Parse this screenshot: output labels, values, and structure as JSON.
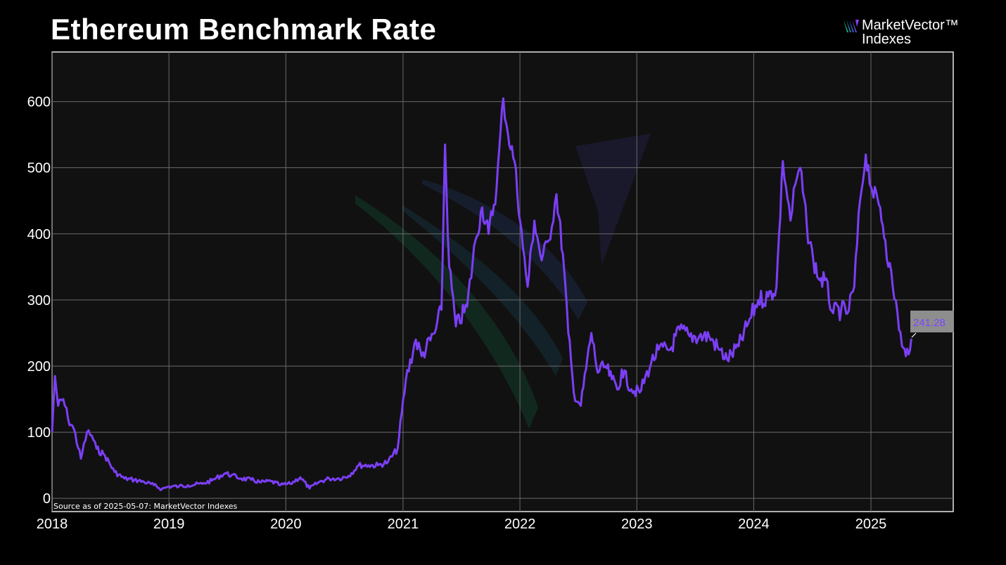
{
  "title": "Ethereum Benchmark Rate",
  "logo": {
    "line1": "MarketVector™",
    "line2": "Indexes",
    "icon": "marketvector-logo-icon"
  },
  "source_note": "Source as of 2025-05-07: MarketVector Indexes",
  "last_value_label": "241.28",
  "colors": {
    "line": "#7b3ff5",
    "grid": "#6a6a6a",
    "background": "#111111",
    "frame": "#e6e6e6",
    "label_box": "#8e8e8e"
  },
  "chart_data": {
    "type": "line",
    "title": "Ethereum Benchmark Rate",
    "xlabel": "",
    "ylabel": "",
    "xlim": [
      "2018-01-01",
      "2025-09-15"
    ],
    "ylim": [
      -20,
      675
    ],
    "x_ticks": [
      "2018",
      "2019",
      "2020",
      "2021",
      "2022",
      "2023",
      "2024",
      "2025"
    ],
    "y_ticks": [
      0,
      100,
      200,
      300,
      400,
      500,
      600
    ],
    "grid": true,
    "legend": "none",
    "series": [
      {
        "x": [
          "2018-01-01",
          "2018-01-10",
          "2018-01-20",
          "2018-02-05",
          "2018-02-20",
          "2018-03-10",
          "2018-04-01",
          "2018-04-20",
          "2018-05-05",
          "2018-05-20",
          "2018-06-15",
          "2018-07-15",
          "2018-08-15",
          "2018-09-15",
          "2018-10-15",
          "2018-11-15",
          "2018-12-10",
          "2019-01-01",
          "2019-02-01",
          "2019-03-01",
          "2019-04-15",
          "2019-05-15",
          "2019-06-25",
          "2019-07-15",
          "2019-08-15",
          "2019-09-15",
          "2019-10-15",
          "2019-11-15",
          "2019-12-15",
          "2020-01-15",
          "2020-02-15",
          "2020-03-15",
          "2020-04-15",
          "2020-05-15",
          "2020-06-15",
          "2020-07-15",
          "2020-08-15",
          "2020-09-15",
          "2020-10-15",
          "2020-11-15",
          "2020-12-15",
          "2021-01-10",
          "2021-02-10",
          "2021-02-28",
          "2021-04-10",
          "2021-05-01",
          "2021-05-12",
          "2021-05-25",
          "2021-06-15",
          "2021-07-20",
          "2021-08-15",
          "2021-09-05",
          "2021-09-25",
          "2021-10-20",
          "2021-11-10",
          "2021-11-25",
          "2021-12-15",
          "2022-01-10",
          "2022-01-25",
          "2022-02-15",
          "2022-03-10",
          "2022-04-01",
          "2022-04-25",
          "2022-05-15",
          "2022-06-01",
          "2022-06-18",
          "2022-07-10",
          "2022-08-12",
          "2022-09-01",
          "2022-09-25",
          "2022-10-15",
          "2022-11-05",
          "2022-11-15",
          "2022-12-15",
          "2023-01-10",
          "2023-02-15",
          "2023-03-10",
          "2023-04-15",
          "2023-05-15",
          "2023-06-15",
          "2023-07-15",
          "2023-08-15",
          "2023-09-15",
          "2023-10-10",
          "2023-11-15",
          "2023-12-15",
          "2024-01-15",
          "2024-02-15",
          "2024-03-12",
          "2024-04-01",
          "2024-04-25",
          "2024-05-10",
          "2024-05-25",
          "2024-06-15",
          "2024-07-05",
          "2024-07-25",
          "2024-08-10",
          "2024-09-05",
          "2024-09-30",
          "2024-10-20",
          "2024-11-10",
          "2024-11-28",
          "2024-12-16",
          "2025-01-05",
          "2025-01-30",
          "2025-02-15",
          "2025-03-10",
          "2025-03-25",
          "2025-04-08",
          "2025-04-20",
          "2025-05-07"
        ],
        "y": [
          100,
          185,
          140,
          150,
          120,
          105,
          60,
          100,
          95,
          75,
          65,
          40,
          30,
          28,
          25,
          20,
          14,
          18,
          18,
          20,
          22,
          27,
          38,
          35,
          30,
          28,
          24,
          26,
          20,
          22,
          32,
          15,
          25,
          30,
          30,
          34,
          50,
          50,
          50,
          55,
          75,
          180,
          240,
          215,
          250,
          285,
          535,
          350,
          260,
          290,
          390,
          440,
          400,
          470,
          605,
          550,
          510,
          380,
          320,
          420,
          360,
          390,
          460,
          370,
          250,
          160,
          140,
          250,
          190,
          200,
          180,
          165,
          195,
          165,
          160,
          205,
          225,
          225,
          255,
          245,
          245,
          245,
          225,
          210,
          230,
          265,
          300,
          305,
          320,
          510,
          420,
          475,
          500,
          410,
          360,
          330,
          330,
          280,
          285,
          280,
          320,
          450,
          520,
          465,
          440,
          390,
          320,
          280,
          230,
          215,
          241.28
        ]
      }
    ]
  }
}
